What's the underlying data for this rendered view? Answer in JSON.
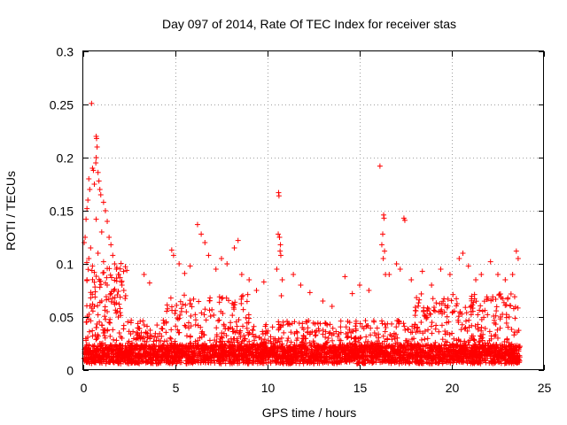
{
  "chart_data": {
    "type": "scatter",
    "title": "Day 097 of 2014, Rate Of TEC Index for receiver stas",
    "xlabel": "GPS time / hours",
    "ylabel": "ROTI / TECUs",
    "xlim": [
      0,
      25
    ],
    "ylim": [
      0,
      0.3
    ],
    "x_ticks": [
      0,
      5,
      10,
      15,
      20,
      25
    ],
    "x_tick_labels": [
      "0",
      "5",
      "10",
      "15",
      "20",
      "25"
    ],
    "y_ticks": [
      0,
      0.05,
      0.1,
      0.15,
      0.2,
      0.25,
      0.3
    ],
    "y_tick_labels": [
      "0",
      "0.05",
      "0.1",
      "0.15",
      "0.2",
      "0.25",
      "0.3"
    ],
    "grid": true,
    "marker": "+",
    "color": "#ff0000",
    "series": [
      {
        "name": "ROTI",
        "points": [
          [
            0.45,
            0.251
          ],
          [
            0.7,
            0.22
          ],
          [
            0.72,
            0.218
          ],
          [
            0.75,
            0.21
          ],
          [
            0.7,
            0.2
          ],
          [
            0.68,
            0.195
          ],
          [
            0.5,
            0.19
          ],
          [
            0.55,
            0.188
          ],
          [
            0.8,
            0.186
          ],
          [
            0.3,
            0.18
          ],
          [
            0.85,
            0.178
          ],
          [
            0.6,
            0.175
          ],
          [
            0.35,
            0.17
          ],
          [
            0.9,
            0.17
          ],
          [
            0.95,
            0.165
          ],
          [
            0.25,
            0.16
          ],
          [
            1.1,
            0.158
          ],
          [
            0.2,
            0.152
          ],
          [
            1.2,
            0.15
          ],
          [
            0.15,
            0.142
          ],
          [
            0.7,
            0.142
          ],
          [
            1.3,
            0.14
          ],
          [
            1.0,
            0.13
          ],
          [
            0.1,
            0.125
          ],
          [
            1.4,
            0.125
          ],
          [
            0.05,
            0.12
          ],
          [
            1.5,
            0.118
          ],
          [
            0.4,
            0.115
          ],
          [
            0.8,
            0.11
          ],
          [
            1.6,
            0.108
          ],
          [
            0.3,
            0.105
          ],
          [
            1.1,
            0.102
          ],
          [
            1.7,
            0.1
          ],
          [
            0.5,
            0.098
          ],
          [
            1.8,
            0.095
          ],
          [
            0.6,
            0.092
          ],
          [
            1.9,
            0.09
          ],
          [
            2.0,
            0.087
          ],
          [
            0.2,
            0.085
          ],
          [
            1.2,
            0.082
          ],
          [
            2.1,
            0.08
          ],
          [
            0.9,
            0.078
          ],
          [
            2.2,
            0.075
          ],
          [
            1.5,
            0.072
          ],
          [
            2.3,
            0.07
          ],
          [
            0.4,
            0.068
          ],
          [
            1.0,
            0.065
          ],
          [
            1.7,
            0.062
          ],
          [
            0.6,
            0.06
          ],
          [
            2.0,
            0.058
          ],
          [
            1.3,
            0.055
          ],
          [
            0.8,
            0.052
          ],
          [
            1.9,
            0.05
          ],
          [
            0.3,
            0.048
          ],
          [
            1.4,
            0.045
          ],
          [
            2.2,
            0.042
          ],
          [
            0.7,
            0.04
          ],
          [
            1.6,
            0.038
          ],
          [
            1.1,
            0.035
          ],
          [
            0.5,
            0.032
          ],
          [
            2.1,
            0.03
          ],
          [
            1.8,
            0.028
          ],
          [
            0.9,
            0.025
          ],
          [
            10.6,
            0.167
          ],
          [
            10.62,
            0.164
          ],
          [
            10.58,
            0.128
          ],
          [
            10.65,
            0.125
          ],
          [
            10.7,
            0.118
          ],
          [
            10.68,
            0.112
          ],
          [
            10.72,
            0.108
          ],
          [
            10.5,
            0.095
          ],
          [
            10.8,
            0.085
          ],
          [
            10.75,
            0.07
          ],
          [
            16.1,
            0.192
          ],
          [
            16.3,
            0.146
          ],
          [
            16.32,
            0.143
          ],
          [
            16.25,
            0.128
          ],
          [
            16.2,
            0.118
          ],
          [
            16.35,
            0.112
          ],
          [
            16.28,
            0.105
          ],
          [
            16.4,
            0.09
          ],
          [
            17.4,
            0.143
          ],
          [
            17.45,
            0.141
          ],
          [
            17.0,
            0.1
          ],
          [
            17.2,
            0.095
          ],
          [
            3.3,
            0.09
          ],
          [
            3.6,
            0.082
          ],
          [
            4.8,
            0.113
          ],
          [
            4.9,
            0.108
          ],
          [
            5.2,
            0.1
          ],
          [
            5.5,
            0.091
          ],
          [
            5.8,
            0.098
          ],
          [
            6.2,
            0.137
          ],
          [
            6.4,
            0.128
          ],
          [
            6.6,
            0.12
          ],
          [
            6.8,
            0.108
          ],
          [
            7.2,
            0.095
          ],
          [
            7.5,
            0.105
          ],
          [
            7.8,
            0.1
          ],
          [
            8.2,
            0.115
          ],
          [
            8.4,
            0.122
          ],
          [
            8.6,
            0.09
          ],
          [
            9.0,
            0.085
          ],
          [
            9.4,
            0.075
          ],
          [
            9.8,
            0.083
          ],
          [
            11.4,
            0.09
          ],
          [
            11.8,
            0.08
          ],
          [
            12.3,
            0.073
          ],
          [
            13.0,
            0.065
          ],
          [
            13.5,
            0.06
          ],
          [
            14.2,
            0.088
          ],
          [
            14.6,
            0.072
          ],
          [
            15.0,
            0.08
          ],
          [
            15.5,
            0.075
          ],
          [
            16.6,
            0.09
          ],
          [
            17.8,
            0.085
          ],
          [
            18.4,
            0.093
          ],
          [
            18.9,
            0.08
          ],
          [
            19.4,
            0.095
          ],
          [
            19.9,
            0.09
          ],
          [
            20.4,
            0.105
          ],
          [
            20.6,
            0.11
          ],
          [
            20.9,
            0.098
          ],
          [
            21.3,
            0.085
          ],
          [
            21.6,
            0.09
          ],
          [
            22.1,
            0.102
          ],
          [
            22.5,
            0.09
          ],
          [
            22.9,
            0.085
          ],
          [
            23.3,
            0.09
          ],
          [
            23.5,
            0.112
          ],
          [
            23.6,
            0.105
          ]
        ]
      }
    ],
    "generated_points_note": "background cloud"
  }
}
